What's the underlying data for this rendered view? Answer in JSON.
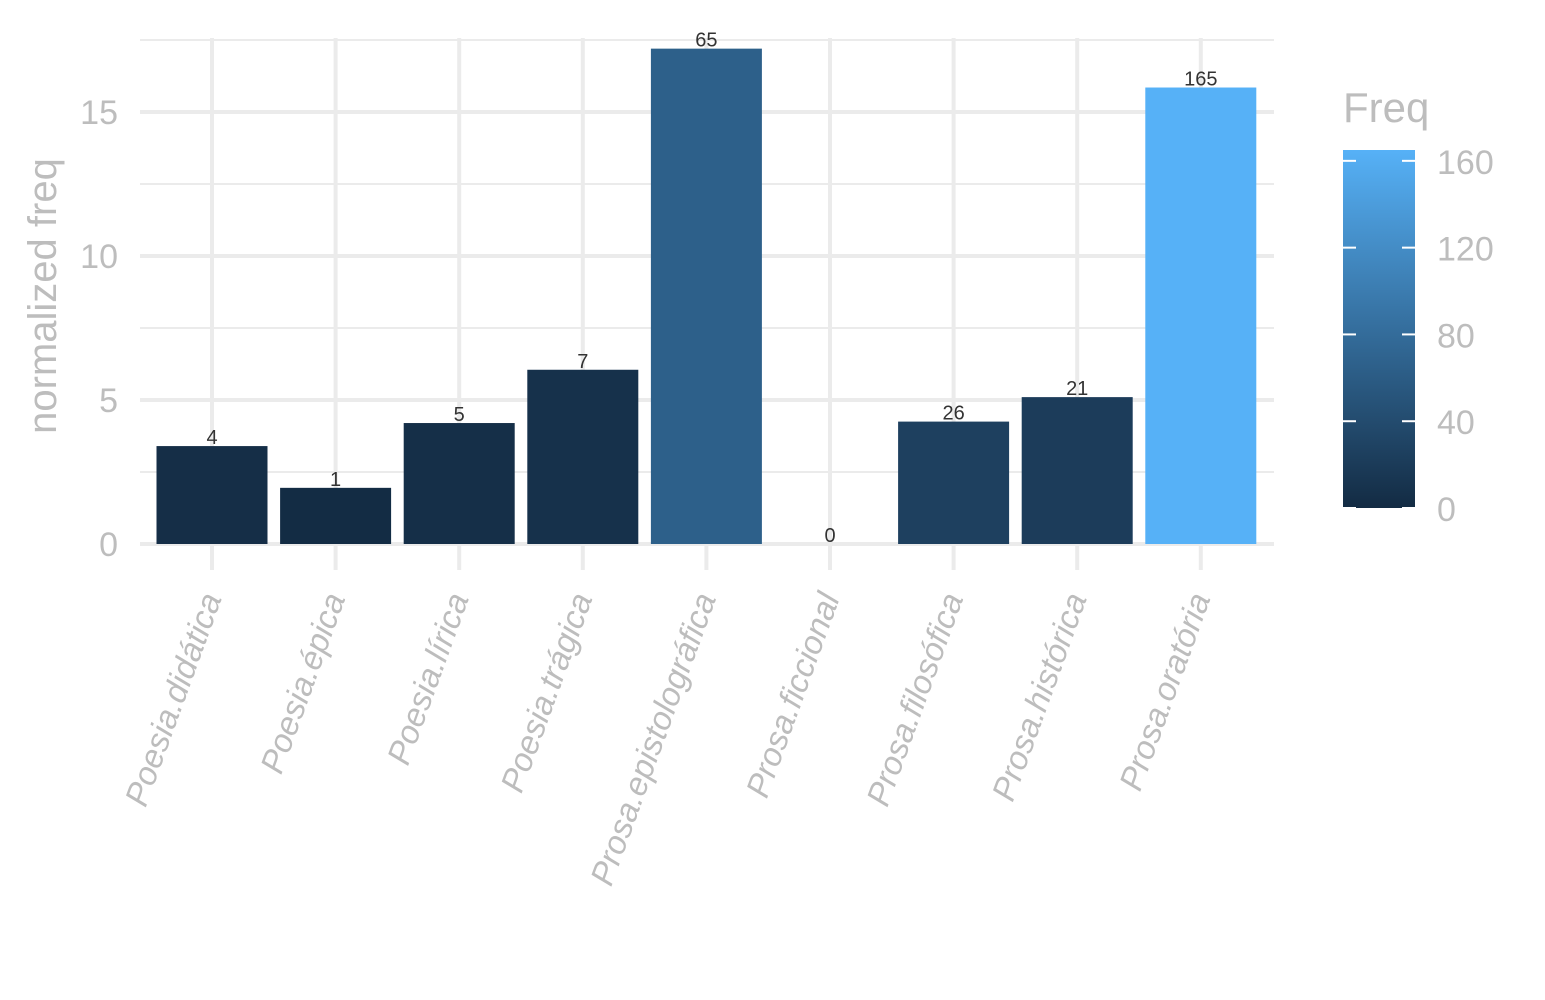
{
  "chart_data": {
    "type": "bar",
    "categories": [
      "Poesia.didática",
      "Poesia.épica",
      "Poesia.lírica",
      "Poesia.trágica",
      "Prosa.epistolográfica",
      "Prosa.ficcional",
      "Prosa.filosófica",
      "Prosa.histórica",
      "Prosa.oratória"
    ],
    "values": [
      3.4,
      1.95,
      4.2,
      6.05,
      17.2,
      0,
      4.25,
      5.1,
      15.85
    ],
    "freq": [
      4,
      1,
      5,
      7,
      65,
      0,
      26,
      21,
      165
    ],
    "data_labels": [
      "4",
      "1",
      "5",
      "7",
      "65",
      "0",
      "26",
      "21",
      "165"
    ],
    "ylabel": "normalized freq",
    "xlabel": "",
    "ylim": [
      0,
      18
    ],
    "yticks": [
      0,
      5,
      10,
      15
    ],
    "ytick_labels": [
      "0",
      "5",
      "10",
      "15"
    ],
    "grid": true,
    "legend": {
      "title": "Freq",
      "type": "colorbar",
      "placement": "right",
      "range": [
        0,
        165
      ],
      "ticks": [
        0,
        40,
        80,
        120,
        160
      ],
      "tick_labels": [
        "0",
        "40",
        "80",
        "120",
        "160"
      ],
      "color_low": "#132B43",
      "color_high": "#56B1F7"
    }
  }
}
